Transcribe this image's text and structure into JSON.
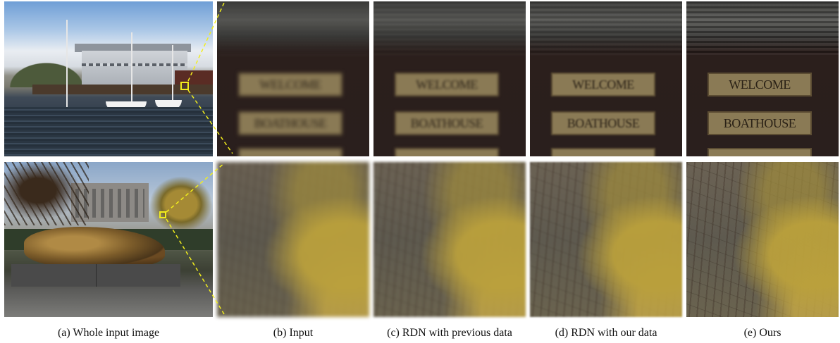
{
  "figure": {
    "captions": [
      "(a) Whole input image",
      "(b) Input",
      "(c) RDN with previous data",
      "(d) RDN with our data",
      "(e) Ours"
    ],
    "sign_text": [
      "WELCOME",
      "BOATHOUSE"
    ],
    "marker_color": "#f2ee1c"
  }
}
